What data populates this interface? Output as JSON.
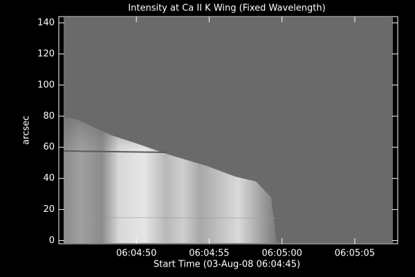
{
  "chart_data": {
    "type": "image",
    "title": "Intensity at Ca II K Wing (Fixed Wavelength)",
    "x_label": "Start Time (03-Aug-08 06:04:45)",
    "y_label": "arcsec",
    "xlim": [
      -0.33,
      22.95
    ],
    "xticks": [
      {
        "value": 5,
        "label": "06:04:50"
      },
      {
        "value": 10,
        "label": "06:04:55"
      },
      {
        "value": 15,
        "label": "06:05:00"
      },
      {
        "value": 20,
        "label": "06:05:05"
      }
    ],
    "ylim": [
      -2,
      144
    ],
    "yticks": [
      0,
      20,
      40,
      60,
      80,
      100,
      120,
      140
    ]
  }
}
